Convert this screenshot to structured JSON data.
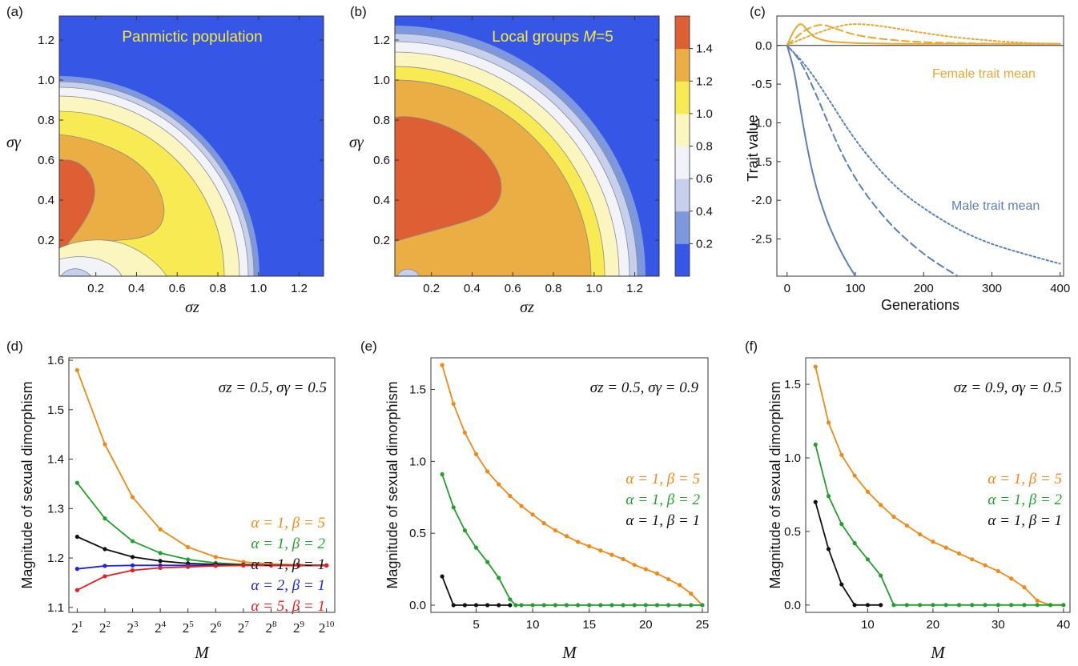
{
  "panel_labels": [
    "(a)",
    "(b)",
    "(c)",
    "(d)",
    "(e)",
    "(f)"
  ],
  "chart_data": [
    {
      "id": "a",
      "type": "heatmap",
      "title": "Panmictic population",
      "xlabel": "σz",
      "ylabel": "σγ",
      "xlim": [
        0.02,
        1.32
      ],
      "ylim": [
        0.02,
        1.32
      ],
      "xticks": [
        "0.2",
        "0.4",
        "0.6",
        "0.8",
        "1.0",
        "1.2"
      ],
      "yticks": [
        "0.2",
        "0.4",
        "0.6",
        "0.8",
        "1.0",
        "1.2"
      ],
      "contour_levels": [
        0.2,
        0.4,
        0.6,
        0.8,
        1.0,
        1.2,
        1.4
      ],
      "peak": {
        "x": 0.02,
        "y": 0.46,
        "value": 1.5
      },
      "boundary_radius": 0.97
    },
    {
      "id": "b",
      "type": "heatmap",
      "title": "Local groups M=5",
      "title_text": "Local groups ",
      "title_math": "M",
      "title_tail": "=5",
      "xlabel": "σz",
      "ylabel": "σγ",
      "xlim": [
        0.02,
        1.32
      ],
      "ylim": [
        0.02,
        1.32
      ],
      "xticks": [
        "0.2",
        "0.4",
        "0.6",
        "0.8",
        "1.0",
        "1.2"
      ],
      "yticks": [
        "0.2",
        "0.4",
        "0.6",
        "0.8",
        "1.0",
        "1.2"
      ],
      "contour_levels": [
        0.2,
        0.4,
        0.6,
        0.8,
        1.0,
        1.2,
        1.4
      ],
      "peak": {
        "x": 0.02,
        "y": 0.6,
        "value": 1.55
      },
      "boundary_radius": 1.18,
      "colorbar": {
        "ticks": [
          "0.2",
          "0.4",
          "0.6",
          "0.8",
          "1.0",
          "1.2",
          "1.4"
        ],
        "colors": [
          "#3656e6",
          "#7d98dd",
          "#c6d0ee",
          "#f1f3f8",
          "#fbf5c0",
          "#f7ea52",
          "#eaae45",
          "#de5f33"
        ]
      }
    },
    {
      "id": "c",
      "type": "line",
      "xlabel": "Generations",
      "ylabel": "Trait value",
      "xlim": [
        -15,
        405
      ],
      "ylim": [
        -2.98,
        0.38
      ],
      "xticks": [
        "0",
        "100",
        "200",
        "300",
        "400"
      ],
      "yticks": [
        "0.0",
        "-0.5",
        "-1.0",
        "-1.5",
        "-2.0",
        "-2.5"
      ],
      "annotations": [
        "Female trait mean",
        "Male trait mean"
      ],
      "colors": {
        "female": "#e8a830",
        "male": "#5b80b8"
      },
      "series": [
        {
          "group": "female",
          "style": "solid",
          "x": [
            0,
            10,
            20,
            30,
            40,
            60,
            80,
            100,
            150,
            200,
            300,
            400
          ],
          "y": [
            0.0,
            0.2,
            0.3,
            0.19,
            0.1,
            0.05,
            0.04,
            0.03,
            0.02,
            0.02,
            0.02,
            0.02
          ]
        },
        {
          "group": "female",
          "style": "dashed",
          "x": [
            0,
            15,
            30,
            50,
            70,
            100,
            150,
            200,
            300,
            400
          ],
          "y": [
            0.0,
            0.12,
            0.22,
            0.28,
            0.22,
            0.13,
            0.07,
            0.04,
            0.02,
            0.02
          ]
        },
        {
          "group": "female",
          "style": "dotted",
          "x": [
            0,
            20,
            50,
            80,
            100,
            130,
            160,
            200,
            250,
            300,
            350,
            400
          ],
          "y": [
            0.0,
            0.08,
            0.18,
            0.26,
            0.28,
            0.26,
            0.22,
            0.16,
            0.1,
            0.06,
            0.03,
            0.02
          ]
        },
        {
          "group": "male",
          "style": "solid",
          "x": [
            0,
            10,
            20,
            30,
            40,
            50,
            60,
            70,
            80,
            90,
            100
          ],
          "y": [
            0.0,
            -0.3,
            -0.85,
            -1.35,
            -1.75,
            -2.05,
            -2.3,
            -2.5,
            -2.68,
            -2.84,
            -2.98
          ]
        },
        {
          "group": "male",
          "style": "dashed",
          "x": [
            0,
            20,
            40,
            60,
            80,
            100,
            120,
            150,
            180,
            210,
            250
          ],
          "y": [
            0.0,
            -0.2,
            -0.58,
            -1.0,
            -1.4,
            -1.72,
            -1.98,
            -2.3,
            -2.55,
            -2.76,
            -2.98
          ]
        },
        {
          "group": "male",
          "style": "dotted",
          "x": [
            0,
            30,
            60,
            90,
            120,
            150,
            180,
            220,
            260,
            300,
            350,
            400
          ],
          "y": [
            0.0,
            -0.28,
            -0.68,
            -1.1,
            -1.45,
            -1.75,
            -1.98,
            -2.22,
            -2.42,
            -2.57,
            -2.7,
            -2.82
          ]
        }
      ]
    },
    {
      "id": "d",
      "type": "line",
      "xlabel": "M",
      "ylabel": "Magnitude of sexual dimorphism",
      "annotation": "σz = 0.5, σγ = 0.5",
      "xlim": [
        0.7,
        10.3
      ],
      "ylim": [
        1.09,
        1.605
      ],
      "x": [
        1,
        2,
        3,
        4,
        5,
        6,
        7,
        8,
        9,
        10
      ],
      "xticks_base": "2",
      "xticks_exp": [
        "1",
        "2",
        "3",
        "4",
        "5",
        "6",
        "7",
        "8",
        "9",
        "10"
      ],
      "yticks": [
        "1.1",
        "1.2",
        "1.3",
        "1.4",
        "1.5",
        "1.6"
      ],
      "series": [
        {
          "name": "α = 1, β = 5",
          "color": "#ef8a18",
          "values": [
            1.58,
            1.43,
            1.323,
            1.258,
            1.222,
            1.202,
            1.192,
            1.188,
            1.186,
            1.185
          ]
        },
        {
          "name": "α = 1, β = 2",
          "color": "#22a02e",
          "values": [
            1.352,
            1.28,
            1.234,
            1.21,
            1.197,
            1.19,
            1.187,
            1.186,
            1.185,
            1.185
          ]
        },
        {
          "name": "α = 1, β = 1",
          "color": "#111111",
          "values": [
            1.243,
            1.218,
            1.202,
            1.194,
            1.189,
            1.187,
            1.186,
            1.185,
            1.185,
            1.185
          ]
        },
        {
          "name": "α = 2, β = 1",
          "color": "#1a22e6",
          "values": [
            1.178,
            1.184,
            1.185,
            1.185,
            1.185,
            1.185,
            1.185,
            1.185,
            1.185,
            1.185
          ]
        },
        {
          "name": "α = 5, β = 1",
          "color": "#e61e1e",
          "values": [
            1.135,
            1.163,
            1.175,
            1.18,
            1.182,
            1.184,
            1.185,
            1.185,
            1.185,
            1.185
          ]
        }
      ]
    },
    {
      "id": "e",
      "type": "line",
      "xlabel": "M",
      "ylabel": "Magnitude of sexual dimorphism",
      "annotation": "σz = 0.5, σγ = 0.9",
      "xlim": [
        1,
        25.5
      ],
      "ylim": [
        -0.05,
        1.72
      ],
      "xticks": [
        "5",
        "10",
        "15",
        "20",
        "25"
      ],
      "yticks": [
        "0.0",
        "0.5",
        "1.0",
        "1.5"
      ],
      "series": [
        {
          "name": "α = 1, β = 5",
          "color": "#ef8a18",
          "x": [
            2,
            3,
            4,
            5,
            6,
            7,
            8,
            9,
            10,
            11,
            12,
            13,
            14,
            15,
            16,
            17,
            18,
            19,
            20,
            21,
            22,
            23,
            24,
            25
          ],
          "values": [
            1.67,
            1.4,
            1.2,
            1.05,
            0.93,
            0.84,
            0.76,
            0.69,
            0.63,
            0.57,
            0.52,
            0.48,
            0.44,
            0.41,
            0.38,
            0.35,
            0.32,
            0.28,
            0.25,
            0.22,
            0.18,
            0.14,
            0.08,
            0.0
          ]
        },
        {
          "name": "α = 1, β = 2",
          "color": "#22a02e",
          "x": [
            2,
            3,
            4,
            5,
            6,
            7,
            8,
            8.5,
            9,
            10,
            11,
            12,
            13,
            14,
            15,
            16,
            17,
            18,
            19,
            20,
            21,
            22,
            23,
            24,
            25
          ],
          "values": [
            0.91,
            0.68,
            0.52,
            0.4,
            0.3,
            0.19,
            0.04,
            0.0,
            0.0,
            0.0,
            0.0,
            0.0,
            0.0,
            0.0,
            0.0,
            0.0,
            0.0,
            0.0,
            0.0,
            0.0,
            0.0,
            0.0,
            0.0,
            0.0,
            0.0
          ]
        },
        {
          "name": "α = 1, β = 1",
          "color": "#111111",
          "x": [
            2,
            3,
            4,
            5,
            6,
            7,
            8
          ],
          "values": [
            0.2,
            0.0,
            0.0,
            0.0,
            0.0,
            0.0,
            0.0
          ]
        }
      ]
    },
    {
      "id": "f",
      "type": "line",
      "xlabel": "M",
      "ylabel": "Magnitude of sexual dimorphism",
      "annotation": "σz = 0.9, σγ = 0.5",
      "xlim": [
        0.5,
        41
      ],
      "ylim": [
        -0.05,
        1.68
      ],
      "xticks": [
        "10",
        "20",
        "30",
        "40"
      ],
      "yticks": [
        "0.0",
        "0.5",
        "1.0",
        "1.5"
      ],
      "series": [
        {
          "name": "α = 1, β = 5",
          "color": "#ef8a18",
          "x": [
            2,
            4,
            6,
            8,
            10,
            12,
            14,
            16,
            18,
            20,
            22,
            24,
            26,
            28,
            30,
            32,
            34,
            36,
            38,
            40
          ],
          "values": [
            1.62,
            1.24,
            1.02,
            0.88,
            0.77,
            0.68,
            0.6,
            0.54,
            0.48,
            0.43,
            0.39,
            0.35,
            0.31,
            0.27,
            0.23,
            0.18,
            0.12,
            0.03,
            0.0,
            0.0
          ]
        },
        {
          "name": "α = 1, β = 2",
          "color": "#22a02e",
          "x": [
            2,
            4,
            6,
            8,
            10,
            12,
            14,
            16,
            18,
            20,
            22,
            24,
            26,
            28,
            30,
            32,
            34,
            36,
            38,
            40
          ],
          "values": [
            1.09,
            0.74,
            0.55,
            0.42,
            0.31,
            0.2,
            0.0,
            0.0,
            0.0,
            0.0,
            0.0,
            0.0,
            0.0,
            0.0,
            0.0,
            0.0,
            0.0,
            0.0,
            0.0,
            0.0
          ]
        },
        {
          "name": "α = 1, β = 1",
          "color": "#111111",
          "x": [
            2,
            4,
            6,
            8,
            10,
            12
          ],
          "values": [
            0.7,
            0.38,
            0.14,
            0.0,
            0.0,
            0.0
          ]
        }
      ]
    }
  ]
}
